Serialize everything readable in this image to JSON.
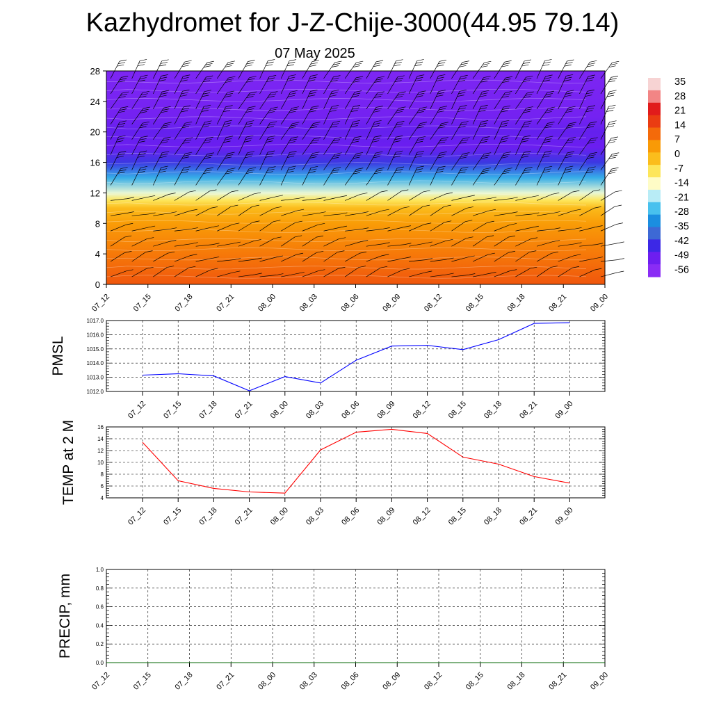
{
  "title": "Kazhydromet for J-Z-Chije-3000(44.95 79.14)",
  "subtitle": "07 May 2025",
  "time_labels": [
    "07_12",
    "07_15",
    "07_18",
    "07_21",
    "08_00",
    "08_03",
    "08_06",
    "08_09",
    "08_12",
    "08_15",
    "08_18",
    "08_21",
    "09_00"
  ],
  "chart_data": [
    {
      "type": "heatmap",
      "title": "",
      "ylim": [
        0,
        28
      ],
      "yticks": [
        0,
        4,
        8,
        12,
        16,
        20,
        24,
        28
      ],
      "x_categories": [
        "07_12",
        "07_15",
        "07_18",
        "07_21",
        "08_00",
        "08_03",
        "08_06",
        "08_09",
        "08_12",
        "08_15",
        "08_18",
        "08_21",
        "09_00"
      ],
      "colorbar": {
        "labels": [
          "35",
          "28",
          "21",
          "14",
          "7",
          "0",
          "-7",
          "-14",
          "-21",
          "-28",
          "-35",
          "-42",
          "-49",
          "-56"
        ],
        "palette": [
          "#f7d3d3",
          "#f28585",
          "#e11b1b",
          "#ea3c12",
          "#f46a0a",
          "#f99a06",
          "#fbbd1c",
          "#fde65a",
          "#fefcc6",
          "#b8ecf6",
          "#48c1ee",
          "#1b8ee0",
          "#3d69d5",
          "#3c28e6",
          "#6d1ef0",
          "#8a2cf5"
        ]
      },
      "temperature_profile": [
        {
          "y": 0,
          "value": 14
        },
        {
          "y": 4,
          "value": 9
        },
        {
          "y": 8,
          "value": 4
        },
        {
          "y": 10,
          "value": -2
        },
        {
          "y": 11,
          "value": -9
        },
        {
          "y": 12,
          "value": -18
        },
        {
          "y": 14,
          "value": -32
        },
        {
          "y": 16,
          "value": -48
        },
        {
          "y": 18,
          "value": -56
        },
        {
          "y": 20,
          "value": -55
        },
        {
          "y": 22,
          "value": -58
        },
        {
          "y": 28,
          "value": -60
        }
      ],
      "wind_barb_columns": 24,
      "wind_barb_levels": [
        1,
        3,
        5,
        7,
        9,
        11,
        13,
        15,
        17,
        19,
        21,
        23,
        25,
        27
      ]
    },
    {
      "type": "line",
      "ylabel": "PMSL",
      "ylim": [
        1012.0,
        1017.0
      ],
      "yticks": [
        "1012.0",
        "1013.0",
        "1014.0",
        "1015.0",
        "1016.0",
        "1017.0"
      ],
      "x": [
        "07_12",
        "07_15",
        "07_18",
        "07_21",
        "08_00",
        "08_03",
        "08_06",
        "08_09",
        "08_12",
        "08_15",
        "08_18",
        "08_21",
        "09_00"
      ],
      "series": [
        {
          "color": "#0000ff",
          "values": [
            1013.15,
            1013.25,
            1013.1,
            1012.05,
            1013.05,
            1012.6,
            1014.2,
            1015.2,
            1015.25,
            1014.95,
            1015.65,
            1016.8,
            1016.85
          ]
        }
      ]
    },
    {
      "type": "line",
      "ylabel": "TEMP at 2 M",
      "ylim": [
        4,
        16
      ],
      "yticks": [
        "4",
        "6",
        "8",
        "10",
        "12",
        "14",
        "16"
      ],
      "x": [
        "07_12",
        "07_15",
        "07_18",
        "07_21",
        "08_00",
        "08_03",
        "08_06",
        "08_09",
        "08_12",
        "08_15",
        "08_18",
        "08_21",
        "09_00"
      ],
      "series": [
        {
          "color": "#ff0000",
          "values": [
            13.4,
            6.9,
            5.6,
            5.0,
            4.8,
            12.1,
            15.1,
            15.6,
            14.9,
            10.9,
            9.7,
            7.6,
            6.5
          ]
        }
      ]
    },
    {
      "type": "line",
      "ylabel": "PRECIP, mm",
      "ylim": [
        0.0,
        1.0
      ],
      "yticks": [
        "0.0",
        "0.2",
        "0.4",
        "0.6",
        "0.8",
        "1.0"
      ],
      "x": [
        "07_12",
        "07_15",
        "07_18",
        "07_21",
        "08_00",
        "08_03",
        "08_06",
        "08_09",
        "08_12",
        "08_15",
        "08_18",
        "08_21",
        "09_00"
      ],
      "series": [
        {
          "color": "#006400",
          "values": [
            0,
            0,
            0,
            0,
            0,
            0,
            0,
            0,
            0,
            0,
            0,
            0,
            0
          ]
        }
      ]
    }
  ]
}
